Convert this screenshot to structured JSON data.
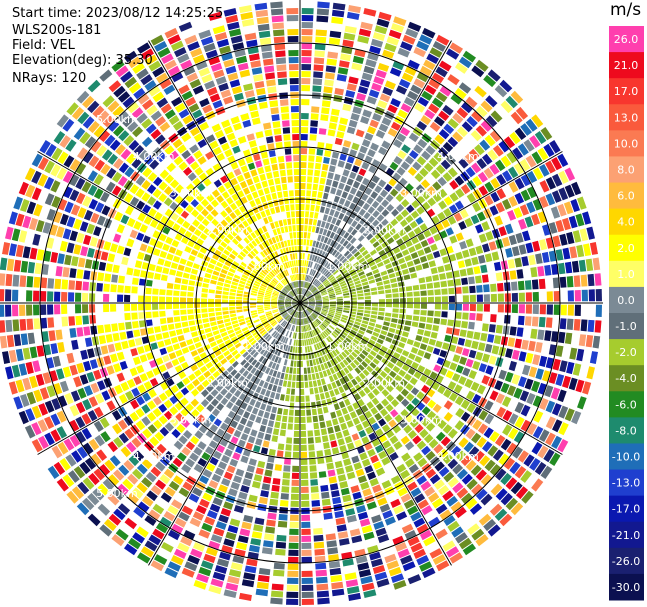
{
  "info": {
    "start_time": "Start time: 2023/08/12 14:25:25",
    "instrument": "WLS200s-181",
    "field": "Field: VEL",
    "elevation": "Elevation(deg): 35.30",
    "nrays": "NRays: 120"
  },
  "colorbar": {
    "unit": "m/s",
    "ticks": [
      "26.0",
      "21.0",
      "17.0",
      "13.0",
      "10.0",
      "8.0",
      "6.0",
      "4.0",
      "2.0",
      "1.0",
      "0.0",
      "-1.0",
      "-2.0",
      "-4.0",
      "-6.0",
      "-8.0",
      "-10.0",
      "-13.0",
      "-17.0",
      "-21.0",
      "-26.0",
      "-30.0"
    ],
    "colors": [
      "#ff3fae",
      "#ee0a1e",
      "#f8362e",
      "#fa5a3c",
      "#fb7a52",
      "#fca173",
      "#ffbb3d",
      "#ffd700",
      "#ffff00",
      "#ffff66",
      "#7b8a95",
      "#606f79",
      "#a6cc2e",
      "#6b8e23",
      "#228b22",
      "#1e8b6e",
      "#1f6eb8",
      "#1f3fcf",
      "#0a18b0",
      "#121890",
      "#1a2070",
      "#0b1050"
    ]
  },
  "range_labels": {
    "ne": [
      "1.00km",
      "2.00km",
      "3.00km",
      "4.00km"
    ],
    "nw": [
      "1.00km",
      "2.00km",
      "3.00km",
      "4.00km",
      "5.00km"
    ],
    "se": [
      "1.00km",
      "2.00km",
      "3.00km",
      "4.00km"
    ],
    "sw": [
      "1.00km",
      "2.00km",
      "3.00km",
      "4.00km",
      "5.00km"
    ]
  }
}
